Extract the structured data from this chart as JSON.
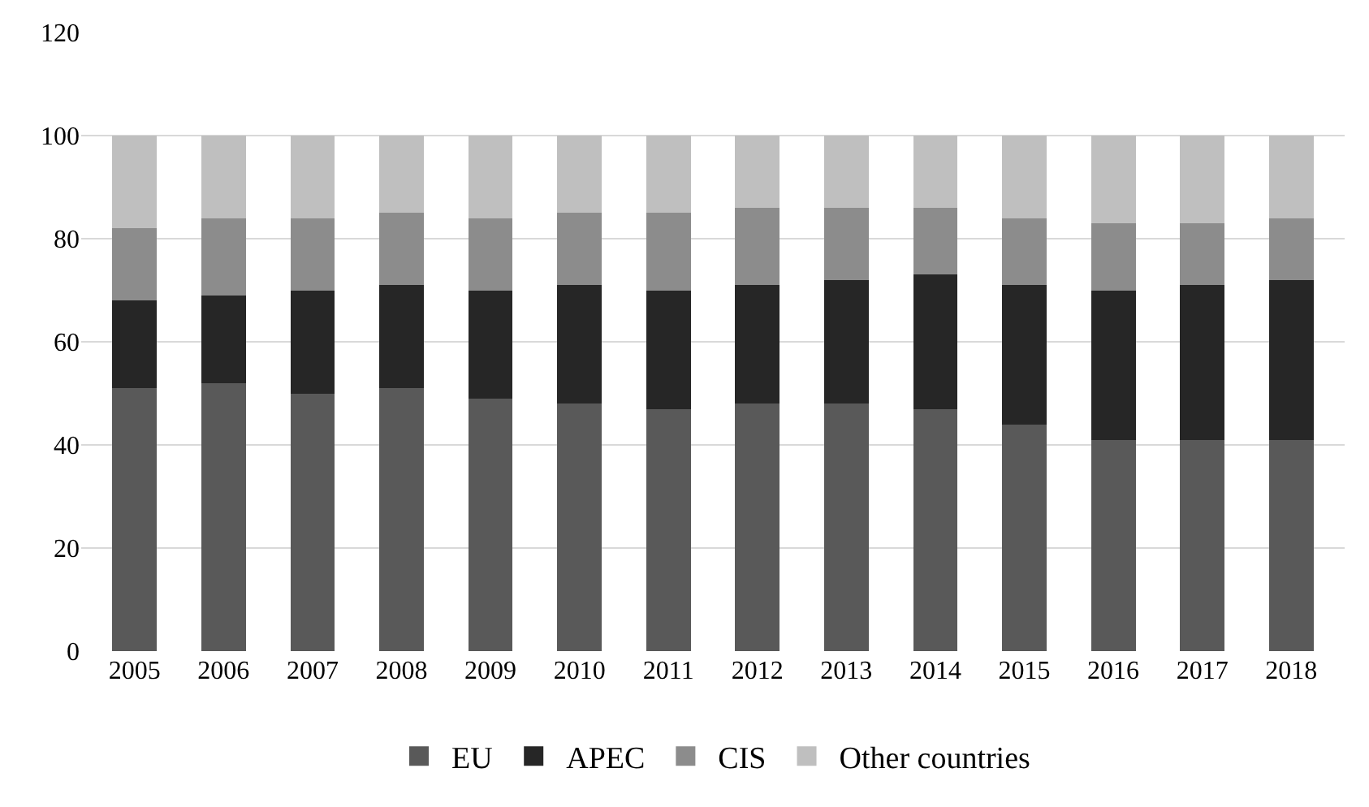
{
  "chart_data": {
    "type": "bar",
    "stacked": true,
    "categories": [
      "2005",
      "2006",
      "2007",
      "2008",
      "2009",
      "2010",
      "2011",
      "2012",
      "2013",
      "2014",
      "2015",
      "2016",
      "2017",
      "2018"
    ],
    "series": [
      {
        "name": "EU",
        "color": "#595959",
        "values": [
          51,
          52,
          50,
          51,
          49,
          48,
          47,
          48,
          48,
          47,
          44,
          41,
          41,
          41
        ]
      },
      {
        "name": "APEC",
        "color": "#262626",
        "values": [
          17,
          17,
          20,
          20,
          21,
          23,
          23,
          23,
          24,
          26,
          27,
          29,
          30,
          31
        ]
      },
      {
        "name": "CIS",
        "color": "#8c8c8c",
        "values": [
          14,
          15,
          14,
          14,
          14,
          14,
          15,
          15,
          14,
          13,
          13,
          13,
          12,
          12
        ]
      },
      {
        "name": "Other countries",
        "color": "#bfbfbf",
        "values": [
          18,
          16,
          16,
          15,
          16,
          15,
          15,
          14,
          14,
          14,
          16,
          17,
          17,
          16
        ]
      }
    ],
    "ylim": [
      0,
      120
    ],
    "yticks": [
      0,
      20,
      40,
      60,
      80,
      100,
      120
    ],
    "grid": "y",
    "legend": "bottom"
  }
}
